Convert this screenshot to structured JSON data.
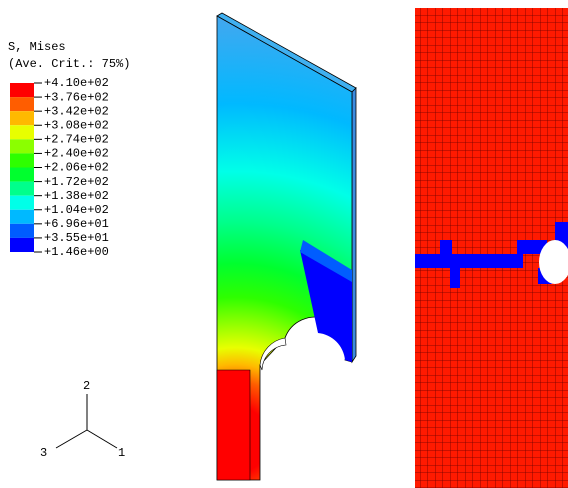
{
  "legend": {
    "title": "S, Mises",
    "criterion": "(Ave. Crit.: 75%)",
    "labels": [
      "+4.10e+02",
      "+3.76e+02",
      "+3.42e+02",
      "+3.08e+02",
      "+2.74e+02",
      "+2.40e+02",
      "+2.06e+02",
      "+1.72e+02",
      "+1.38e+02",
      "+1.04e+02",
      "+6.96e+01",
      "+3.55e+01",
      "+1.46e+00"
    ],
    "colors": [
      "#ff0000",
      "#ff5d00",
      "#ffb900",
      "#e8ff00",
      "#8bff00",
      "#2eff00",
      "#00ff2e",
      "#00ff8b",
      "#00ffe8",
      "#00b9ff",
      "#005dff",
      "#0000ff"
    ]
  },
  "triad": {
    "axis_1": "1",
    "axis_2": "2",
    "axis_3": "3"
  }
}
